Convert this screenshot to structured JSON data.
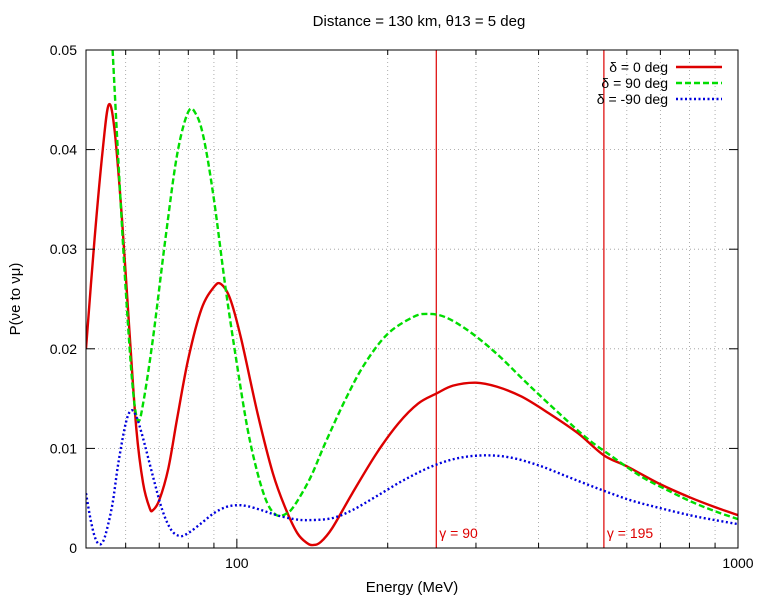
{
  "chart_data": {
    "type": "line",
    "title": "Distance = 130 km, θ13 = 5 deg",
    "xlabel": "Energy (MeV)",
    "ylabel": "P(νe to νμ)",
    "x_scale": "log",
    "xlim": [
      50,
      1000
    ],
    "ylim": [
      0,
      0.05
    ],
    "x_tick_labels": [
      "100",
      "1000"
    ],
    "y_tick_labels": [
      "0",
      "0.01",
      "0.02",
      "0.03",
      "0.04",
      "0.05"
    ],
    "grid": true,
    "legend_position": "top-right",
    "series": [
      {
        "name": "δ = 0 deg",
        "color": "#dd0000",
        "dash": "solid",
        "points": [
          [
            50,
            0.02
          ],
          [
            52,
            0.031
          ],
          [
            54,
            0.04
          ],
          [
            55.5,
            0.0445
          ],
          [
            57,
            0.042
          ],
          [
            59,
            0.033
          ],
          [
            61,
            0.022
          ],
          [
            63,
            0.012
          ],
          [
            65,
            0.0065
          ],
          [
            67,
            0.004
          ],
          [
            68,
            0.0038
          ],
          [
            70,
            0.0048
          ],
          [
            73,
            0.008
          ],
          [
            76,
            0.013
          ],
          [
            80,
            0.019
          ],
          [
            85,
            0.024
          ],
          [
            90,
            0.0262
          ],
          [
            93,
            0.0265
          ],
          [
            97,
            0.025
          ],
          [
            102,
            0.021
          ],
          [
            110,
            0.0135
          ],
          [
            118,
            0.0075
          ],
          [
            125,
            0.004
          ],
          [
            132,
            0.0015
          ],
          [
            138,
            0.0005
          ],
          [
            142,
            0.0003
          ],
          [
            147,
            0.0006
          ],
          [
            155,
            0.002
          ],
          [
            170,
            0.0055
          ],
          [
            190,
            0.0095
          ],
          [
            210,
            0.0125
          ],
          [
            230,
            0.0145
          ],
          [
            250,
            0.0155
          ],
          [
            270,
            0.0163
          ],
          [
            300,
            0.0166
          ],
          [
            330,
            0.0162
          ],
          [
            370,
            0.0152
          ],
          [
            420,
            0.0135
          ],
          [
            480,
            0.0115
          ],
          [
            540,
            0.0093
          ],
          [
            600,
            0.0082
          ],
          [
            700,
            0.0064
          ],
          [
            800,
            0.0051
          ],
          [
            900,
            0.0041
          ],
          [
            1000,
            0.0033
          ]
        ]
      },
      {
        "name": "δ = 90 deg",
        "color": "#00dd00",
        "dash": "dashed",
        "points": [
          [
            56.5,
            0.05
          ],
          [
            58,
            0.039
          ],
          [
            60,
            0.026
          ],
          [
            62,
            0.016
          ],
          [
            63.5,
            0.0128
          ],
          [
            65,
            0.0145
          ],
          [
            68,
            0.021
          ],
          [
            72,
            0.031
          ],
          [
            76,
            0.0395
          ],
          [
            80,
            0.0438
          ],
          [
            83,
            0.0435
          ],
          [
            86,
            0.041
          ],
          [
            90,
            0.035
          ],
          [
            95,
            0.026
          ],
          [
            100,
            0.0185
          ],
          [
            105,
            0.012
          ],
          [
            110,
            0.0075
          ],
          [
            115,
            0.0045
          ],
          [
            120,
            0.0033
          ],
          [
            125,
            0.0034
          ],
          [
            130,
            0.0042
          ],
          [
            140,
            0.007
          ],
          [
            150,
            0.0105
          ],
          [
            165,
            0.015
          ],
          [
            180,
            0.0185
          ],
          [
            200,
            0.0215
          ],
          [
            225,
            0.0232
          ],
          [
            240,
            0.0235
          ],
          [
            260,
            0.0232
          ],
          [
            290,
            0.0218
          ],
          [
            330,
            0.0195
          ],
          [
            380,
            0.0165
          ],
          [
            440,
            0.0135
          ],
          [
            500,
            0.011
          ],
          [
            560,
            0.0092
          ],
          [
            640,
            0.0072
          ],
          [
            730,
            0.0057
          ],
          [
            820,
            0.0045
          ],
          [
            910,
            0.0036
          ],
          [
            1000,
            0.0029
          ]
        ]
      },
      {
        "name": "δ = -90 deg",
        "color": "#0000dd",
        "dash": "dotted",
        "points": [
          [
            50,
            0.0055
          ],
          [
            51,
            0.003
          ],
          [
            52,
            0.0012
          ],
          [
            53,
            0.0004
          ],
          [
            54,
            0.0006
          ],
          [
            55,
            0.0018
          ],
          [
            56.5,
            0.0045
          ],
          [
            58,
            0.0085
          ],
          [
            60,
            0.0125
          ],
          [
            61.5,
            0.0138
          ],
          [
            63,
            0.0132
          ],
          [
            65,
            0.011
          ],
          [
            68,
            0.0072
          ],
          [
            71,
            0.0038
          ],
          [
            74,
            0.0018
          ],
          [
            77,
            0.0012
          ],
          [
            80,
            0.0015
          ],
          [
            85,
            0.0025
          ],
          [
            90,
            0.0035
          ],
          [
            95,
            0.0041
          ],
          [
            100,
            0.0043
          ],
          [
            105,
            0.0042
          ],
          [
            112,
            0.0038
          ],
          [
            120,
            0.0033
          ],
          [
            130,
            0.0029
          ],
          [
            140,
            0.0028
          ],
          [
            155,
            0.003
          ],
          [
            170,
            0.0038
          ],
          [
            190,
            0.0052
          ],
          [
            215,
            0.0068
          ],
          [
            245,
            0.0082
          ],
          [
            275,
            0.009
          ],
          [
            310,
            0.0093
          ],
          [
            350,
            0.0091
          ],
          [
            400,
            0.0083
          ],
          [
            460,
            0.0071
          ],
          [
            530,
            0.0059
          ],
          [
            610,
            0.0048
          ],
          [
            700,
            0.004
          ],
          [
            800,
            0.0033
          ],
          [
            900,
            0.0028
          ],
          [
            1000,
            0.0024
          ]
        ]
      }
    ],
    "annotations": [
      {
        "label": "γ = 90",
        "x": 250,
        "color": "#dd0000"
      },
      {
        "label": "γ = 195",
        "x": 540,
        "color": "#dd0000"
      }
    ]
  }
}
